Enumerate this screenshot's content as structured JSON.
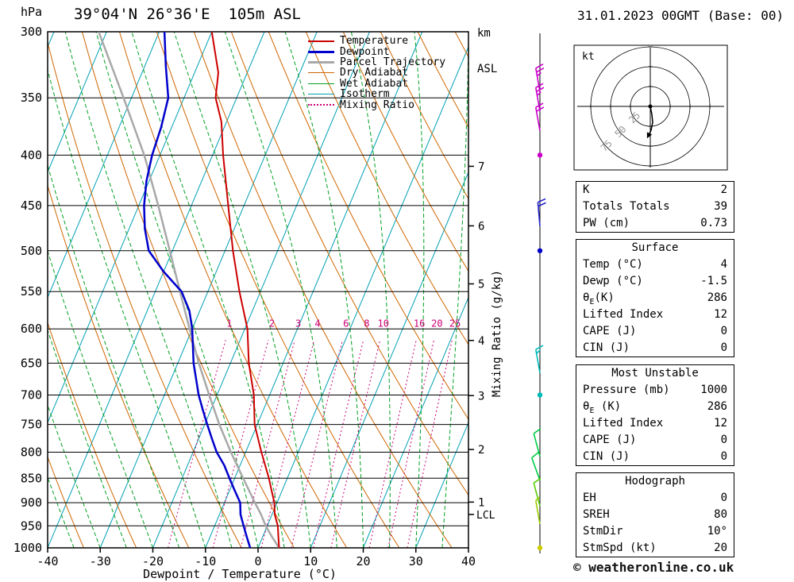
{
  "header": {
    "station": "39°04'N 26°36'E  105m ASL",
    "datetime": "31.01.2023 00GMT (Base: 00)",
    "pressure_unit": "hPa",
    "alt_unit_line1": "km",
    "alt_unit_line2": "ASL"
  },
  "legend": [
    {
      "label": "Temperature",
      "color": "#cc0000",
      "style": "solid",
      "width": 2
    },
    {
      "label": "Dewpoint",
      "color": "#0000cc",
      "style": "solid",
      "width": 3
    },
    {
      "label": "Parcel Trajectory",
      "color": "#a8a8a8",
      "style": "solid",
      "width": 3
    },
    {
      "label": "Dry Adiabat",
      "color": "#d06600",
      "style": "solid",
      "width": 1.5
    },
    {
      "label": "Wet Adiabat",
      "color": "#00a020",
      "style": "solid",
      "width": 1.5
    },
    {
      "label": "Isotherm",
      "color": "#00a0b4",
      "style": "solid",
      "width": 1.5
    },
    {
      "label": "Mixing Ratio",
      "color": "#cc0077",
      "style": "dotted",
      "width": 2
    }
  ],
  "chart_data": {
    "type": "skewt-log-p",
    "title": "39°04'N 26°36'E 105m ASL",
    "x_axis": {
      "label": "Dewpoint / Temperature (°C)",
      "min": -40,
      "max": 40,
      "ticks": [
        -40,
        -30,
        -20,
        -10,
        0,
        10,
        20,
        30,
        40
      ]
    },
    "y_axis": {
      "unit": "hPa",
      "scale": "log",
      "min": 300,
      "max": 1000,
      "levels": [
        300,
        350,
        400,
        450,
        500,
        550,
        600,
        650,
        700,
        750,
        800,
        850,
        900,
        950,
        1000
      ]
    },
    "km_axis": {
      "unit": "km ASL",
      "ticks": [
        1,
        2,
        3,
        4,
        5,
        6,
        7
      ],
      "lcl_label": "LCL",
      "lcl_pressure": 925
    },
    "mixing_ratio": {
      "label": "Mixing Ratio (g/kg)",
      "values": [
        1,
        2,
        3,
        4,
        6,
        8,
        10,
        16,
        20,
        25
      ],
      "label_pressure": 597,
      "line_top_pressure": 608
    },
    "skew": 0.42,
    "isotherm_step": 10,
    "dry_adiabat_step": 10,
    "wet_adiabat_step": 5,
    "colors": {
      "temperature": "#cc0000",
      "dewpoint": "#0000cc",
      "parcel": "#a8a8a8",
      "dry_adiabat": "#d06600",
      "wet_adiabat": "#00a020",
      "isotherm": "#00a0b4",
      "mixing_ratio": "#cc0077",
      "grid": "#000000"
    },
    "series": {
      "temperature": [
        [
          1000,
          4
        ],
        [
          975,
          3
        ],
        [
          950,
          2
        ],
        [
          925,
          0.5
        ],
        [
          900,
          -0.5
        ],
        [
          875,
          -2
        ],
        [
          850,
          -3.5
        ],
        [
          800,
          -7
        ],
        [
          750,
          -10.5
        ],
        [
          700,
          -13
        ],
        [
          650,
          -16.5
        ],
        [
          600,
          -19.5
        ],
        [
          550,
          -24
        ],
        [
          500,
          -28.5
        ],
        [
          450,
          -33
        ],
        [
          400,
          -38
        ],
        [
          370,
          -41
        ],
        [
          350,
          -44
        ],
        [
          330,
          -45.5
        ],
        [
          300,
          -50
        ]
      ],
      "dewpoint": [
        [
          1000,
          -1.5
        ],
        [
          975,
          -3
        ],
        [
          950,
          -4.5
        ],
        [
          925,
          -6
        ],
        [
          900,
          -7
        ],
        [
          875,
          -9
        ],
        [
          850,
          -11
        ],
        [
          825,
          -13
        ],
        [
          800,
          -15.5
        ],
        [
          775,
          -17.5
        ],
        [
          750,
          -19.5
        ],
        [
          725,
          -21.5
        ],
        [
          700,
          -23.5
        ],
        [
          650,
          -27
        ],
        [
          600,
          -30
        ],
        [
          575,
          -32
        ],
        [
          550,
          -35
        ],
        [
          525,
          -40
        ],
        [
          500,
          -44.5
        ],
        [
          475,
          -47
        ],
        [
          450,
          -49
        ],
        [
          425,
          -50.5
        ],
        [
          400,
          -51.5
        ],
        [
          375,
          -52
        ],
        [
          350,
          -53
        ],
        [
          325,
          -56
        ],
        [
          300,
          -59
        ]
      ],
      "parcel": [
        [
          1000,
          4
        ],
        [
          975,
          1.8
        ],
        [
          950,
          -0.3
        ],
        [
          925,
          -2.1
        ],
        [
          900,
          -4.2
        ],
        [
          850,
          -8.4
        ],
        [
          800,
          -12.8
        ],
        [
          750,
          -17.2
        ],
        [
          700,
          -21.5
        ],
        [
          650,
          -26
        ],
        [
          600,
          -30.5
        ],
        [
          550,
          -35.3
        ],
        [
          500,
          -40.5
        ],
        [
          450,
          -46.3
        ],
        [
          400,
          -53
        ],
        [
          350,
          -61.5
        ],
        [
          300,
          -71.5
        ]
      ]
    },
    "wind_barbs": [
      {
        "pressure": 345,
        "speed": 25,
        "direction": 350,
        "color": "#cc00cc"
      },
      {
        "pressure": 361,
        "speed": 25,
        "direction": 350,
        "color": "#cc00cc"
      },
      {
        "pressure": 378,
        "speed": 20,
        "direction": 350,
        "color": "#cc00cc"
      },
      {
        "pressure": 400,
        "dot": true,
        "color": "#cc00cc"
      },
      {
        "pressure": 472,
        "speed": 20,
        "direction": 355,
        "color": "#2222cc"
      },
      {
        "pressure": 500,
        "dot": true,
        "color": "#0000cc"
      },
      {
        "pressure": 665,
        "speed": 15,
        "direction": 350,
        "color": "#00bbbb"
      },
      {
        "pressure": 700,
        "dot": true,
        "color": "#00bbbb"
      },
      {
        "pressure": 808,
        "speed": 10,
        "direction": 345,
        "color": "#00cc44"
      },
      {
        "pressure": 854,
        "speed": 10,
        "direction": 340,
        "color": "#00cc44"
      },
      {
        "pressure": 907,
        "speed": 10,
        "direction": 345,
        "color": "#55cc00"
      },
      {
        "pressure": 946,
        "speed": 5,
        "direction": 350,
        "color": "#99cc00"
      },
      {
        "pressure": 1000,
        "dot": true,
        "color": "#cccc00"
      }
    ],
    "hodograph": {
      "unit_label": "kt",
      "rings": [
        25,
        50,
        75
      ],
      "trace": [
        [
          0,
          0
        ],
        [
          2,
          -10
        ],
        [
          3,
          -20
        ],
        [
          1,
          -30
        ],
        [
          -1,
          -34
        ]
      ]
    }
  },
  "tables": {
    "indices": {
      "rows": [
        [
          "K",
          "2"
        ],
        [
          "Totals Totals",
          "39"
        ],
        [
          "PW (cm)",
          "0.73"
        ]
      ]
    },
    "surface": {
      "title": "Surface",
      "rows": [
        [
          "Temp (°C)",
          "4"
        ],
        [
          "Dewp (°C)",
          "-1.5"
        ],
        [
          "θE(K)",
          "286"
        ],
        [
          "Lifted Index",
          "12"
        ],
        [
          "CAPE (J)",
          "0"
        ],
        [
          "CIN (J)",
          "0"
        ]
      ]
    },
    "most_unstable": {
      "title": "Most Unstable",
      "rows": [
        [
          "Pressure (mb)",
          "1000"
        ],
        [
          "θE (K)",
          "286"
        ],
        [
          "Lifted Index",
          "12"
        ],
        [
          "CAPE (J)",
          "0"
        ],
        [
          "CIN (J)",
          "0"
        ]
      ]
    },
    "hodograph": {
      "title": "Hodograph",
      "rows": [
        [
          "EH",
          "0"
        ],
        [
          "SREH",
          "80"
        ],
        [
          "StmDir",
          "10°"
        ],
        [
          "StmSpd (kt)",
          "20"
        ]
      ]
    }
  },
  "footer": {
    "credit": "© weatheronline.co.uk"
  }
}
